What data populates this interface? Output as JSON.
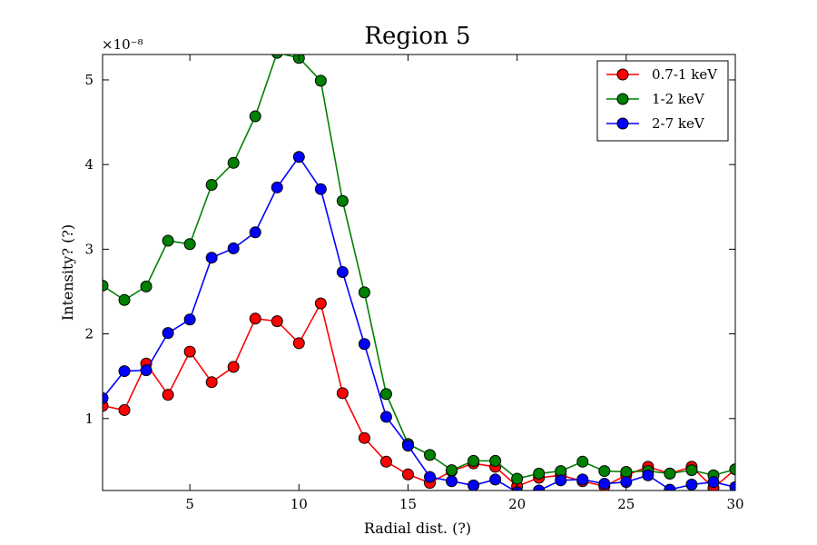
{
  "chart_data": {
    "type": "line",
    "title": "Region 5",
    "xlabel": "Radial dist. (?)",
    "ylabel": "Intensity? (?)",
    "y_multiplier_label": "×10⁻⁸",
    "xlim": [
      1,
      30
    ],
    "ylim": [
      0.15,
      5.3
    ],
    "x_ticks": [
      5,
      10,
      15,
      20,
      25,
      30
    ],
    "y_ticks": [
      1,
      2,
      3,
      4,
      5
    ],
    "legend_position": "top-right",
    "grid": false,
    "x": [
      1,
      2,
      3,
      4,
      5,
      6,
      7,
      8,
      9,
      10,
      11,
      12,
      13,
      14,
      15,
      16,
      17,
      18,
      19,
      20,
      21,
      22,
      23,
      24,
      25,
      26,
      27,
      28,
      29,
      30
    ],
    "series": [
      {
        "name": "0.7-1 keV",
        "color": "#ff0000",
        "values": [
          1.15,
          1.1,
          1.65,
          1.28,
          1.79,
          1.43,
          1.61,
          2.18,
          2.15,
          1.89,
          2.36,
          1.3,
          0.77,
          0.49,
          0.34,
          0.24,
          0.38,
          0.47,
          0.43,
          0.2,
          0.3,
          0.33,
          0.26,
          0.2,
          0.33,
          0.43,
          0.35,
          0.43,
          0.18,
          0.4
        ]
      },
      {
        "name": "1-2 keV",
        "color": "#008000",
        "values": [
          2.57,
          2.4,
          2.56,
          3.1,
          3.06,
          3.76,
          4.02,
          4.57,
          5.32,
          5.26,
          4.99,
          3.57,
          2.49,
          1.29,
          0.7,
          0.57,
          0.39,
          0.5,
          0.5,
          0.29,
          0.35,
          0.38,
          0.49,
          0.38,
          0.37,
          0.38,
          0.35,
          0.39,
          0.33,
          0.4
        ]
      },
      {
        "name": "2-7 keV",
        "color": "#0000ff",
        "values": [
          1.24,
          1.56,
          1.57,
          2.01,
          2.17,
          2.9,
          3.01,
          3.2,
          3.73,
          4.09,
          3.71,
          2.73,
          1.88,
          1.02,
          0.68,
          0.31,
          0.26,
          0.21,
          0.28,
          0.13,
          0.15,
          0.27,
          0.28,
          0.23,
          0.25,
          0.33,
          0.16,
          0.22,
          0.25,
          0.19
        ]
      }
    ]
  }
}
